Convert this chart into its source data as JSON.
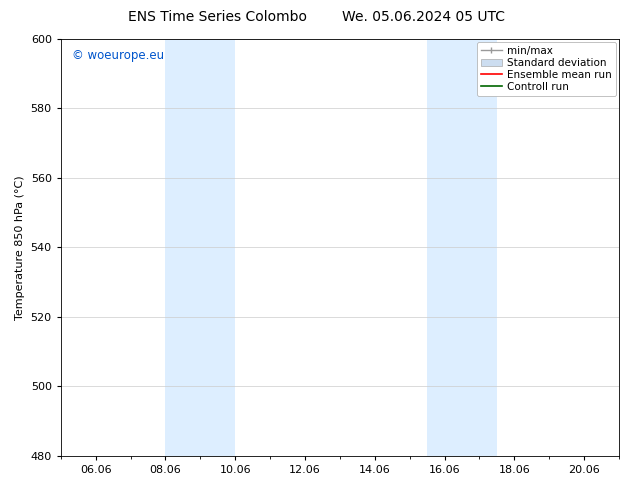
{
  "title_left": "ENS Time Series Colombo",
  "title_right": "We. 05.06.2024 05 UTC",
  "ylabel": "Temperature 850 hPa (°C)",
  "ylim": [
    480,
    600
  ],
  "yticks": [
    480,
    500,
    520,
    540,
    560,
    580,
    600
  ],
  "xtick_labels": [
    "06.06",
    "08.06",
    "10.06",
    "12.06",
    "14.06",
    "16.06",
    "18.06",
    "20.06"
  ],
  "xtick_positions": [
    0,
    2,
    4,
    6,
    8,
    10,
    12,
    14
  ],
  "xlim": [
    -1,
    15
  ],
  "shaded_bands": [
    {
      "xmin": 2.0,
      "xmax": 4.0
    },
    {
      "xmin": 9.5,
      "xmax": 11.5
    }
  ],
  "shaded_color": "#ddeeff",
  "watermark_text": "© woeurope.eu",
  "watermark_color": "#0055cc",
  "legend_entries": [
    {
      "label": "min/max"
    },
    {
      "label": "Standard deviation"
    },
    {
      "label": "Ensemble mean run"
    },
    {
      "label": "Controll run"
    }
  ],
  "background_color": "#ffffff",
  "grid_color": "#cccccc",
  "title_fontsize": 10,
  "label_fontsize": 8,
  "tick_fontsize": 8,
  "legend_fontsize": 7.5
}
